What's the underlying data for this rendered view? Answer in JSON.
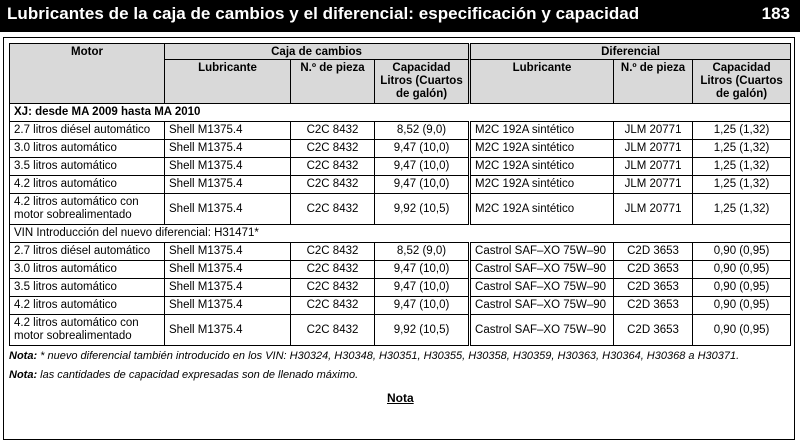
{
  "page": {
    "title": "Lubricantes de la caja de cambios y el diferencial: especificación y capacidad",
    "page_number": "183"
  },
  "table": {
    "headers": {
      "motor": "Motor",
      "gearbox": "Caja de cambios",
      "differential": "Diferencial",
      "lubricant": "Lubricante",
      "part": "N.º de pieza",
      "capacity": "Capacidad Litros (Cuartos de galón)"
    },
    "section1": "XJ: desde MA 2009 hasta MA 2010",
    "rows1": [
      [
        "2.7 litros diésel automático",
        "Shell M1375.4",
        "C2C 8432",
        "8,52 (9,0)",
        "M2C 192A sintético",
        "JLM 20771",
        "1,25 (1,32)"
      ],
      [
        "3.0 litros automático",
        "Shell M1375.4",
        "C2C 8432",
        "9,47 (10,0)",
        "M2C 192A sintético",
        "JLM 20771",
        "1,25 (1,32)"
      ],
      [
        "3.5 litros automático",
        "Shell M1375.4",
        "C2C 8432",
        "9,47 (10,0)",
        "M2C 192A sintético",
        "JLM 20771",
        "1,25 (1,32)"
      ],
      [
        "4.2 litros automático",
        "Shell M1375.4",
        "C2C 8432",
        "9,47 (10,0)",
        "M2C 192A sintético",
        "JLM 20771",
        "1,25 (1,32)"
      ],
      [
        "4.2 litros automático con motor sobrealimentado",
        "Shell M1375.4",
        "C2C 8432",
        "9,92 (10,5)",
        "M2C 192A sintético",
        "JLM 20771",
        "1,25 (1,32)"
      ]
    ],
    "section2": "VIN Introducción del nuevo diferencial: H31471*",
    "rows2": [
      [
        "2.7 litros diésel automático",
        "Shell M1375.4",
        "C2C 8432",
        "8,52 (9,0)",
        "Castrol SAF–XO 75W–90",
        "C2D 3653",
        "0,90 (0,95)"
      ],
      [
        "3.0 litros automático",
        "Shell M1375.4",
        "C2C 8432",
        "9,47 (10,0)",
        "Castrol SAF–XO 75W–90",
        "C2D 3653",
        "0,90 (0,95)"
      ],
      [
        "3.5 litros automático",
        "Shell M1375.4",
        "C2C 8432",
        "9,47 (10,0)",
        "Castrol SAF–XO 75W–90",
        "C2D 3653",
        "0,90 (0,95)"
      ],
      [
        "4.2 litros automático",
        "Shell M1375.4",
        "C2C 8432",
        "9,47 (10,0)",
        "Castrol SAF–XO 75W–90",
        "C2D 3653",
        "0,90 (0,95)"
      ],
      [
        "4.2 litros automático con motor sobrealimentado",
        "Shell M1375.4",
        "C2C 8432",
        "9,92 (10,5)",
        "Castrol SAF–XO 75W–90",
        "C2D 3653",
        "0,90 (0,95)"
      ]
    ]
  },
  "notes": {
    "label": "Nota:",
    "note1": "* nuevo diferencial también introducido en los VIN: H30324, H30348, H30351, H30355, H30358, H30359, H30363, H30364, H30368 a H30371.",
    "note2": "las cantidades de capacidad expresadas son de llenado máximo.",
    "link": "Nota"
  },
  "colors": {
    "title_bg": "#000000",
    "header_bg": "#d9d9d9"
  }
}
